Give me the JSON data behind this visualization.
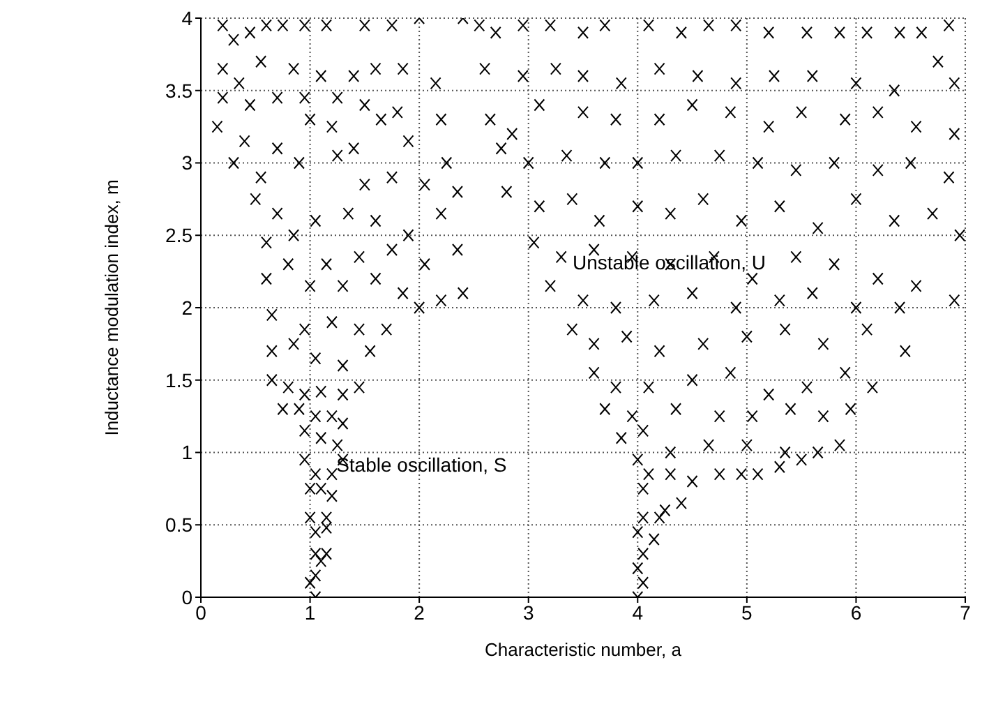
{
  "chart_data": {
    "type": "scatter",
    "xlabel": "Characteristic number, a",
    "ylabel": "Inductance modulation index, m",
    "annotations": [
      "Stable oscillation, S",
      "Unstable oscillation, U"
    ],
    "xlim": [
      0,
      7
    ],
    "xticks": [
      0,
      1,
      2,
      3,
      4,
      5,
      6,
      7
    ],
    "ylim": [
      0,
      4
    ],
    "yticks": [
      0,
      0.5,
      1,
      1.5,
      2,
      2.5,
      3,
      3.5,
      4
    ],
    "grid": true,
    "marker": "cross",
    "series": [
      {
        "color": "#000000",
        "x": [
          0.2,
          0.3,
          0.45,
          0.6,
          0.75,
          0.95,
          1.15,
          1.5,
          1.75,
          2.0,
          2.4,
          0.2,
          0.35,
          0.55,
          0.85,
          1.1,
          1.4,
          1.6,
          1.85,
          2.15,
          0.2,
          0.45,
          0.7,
          0.95,
          1.25,
          1.5,
          1.8,
          2.2,
          0.15,
          0.4,
          0.7,
          1.0,
          1.2,
          1.4,
          1.65,
          1.9,
          2.25,
          0.3,
          0.55,
          0.9,
          1.25,
          1.5,
          1.75,
          2.05,
          2.35,
          0.5,
          0.7,
          1.05,
          1.35,
          1.6,
          1.9,
          2.2,
          0.6,
          0.85,
          1.15,
          1.45,
          1.75,
          2.05,
          2.35,
          0.6,
          0.8,
          1.0,
          1.3,
          1.6,
          1.85,
          2.2,
          2.4,
          0.65,
          0.95,
          1.2,
          1.45,
          1.7,
          2.0,
          0.65,
          0.85,
          1.05,
          1.3,
          1.55,
          0.65,
          0.8,
          0.95,
          1.1,
          1.3,
          1.45,
          0.75,
          0.9,
          1.05,
          1.2,
          1.3,
          0.95,
          1.1,
          1.25,
          0.95,
          1.05,
          1.2,
          1.3,
          1.0,
          1.1,
          1.2,
          1.0,
          1.15,
          1.05,
          1.15,
          1.05,
          1.15,
          1.1,
          1.0,
          1.05,
          1.05,
          2.55,
          2.7,
          2.95,
          3.2,
          3.5,
          3.7,
          4.1,
          4.4,
          4.65,
          4.9,
          5.2,
          5.55,
          5.85,
          6.1,
          6.4,
          6.6,
          6.85,
          2.6,
          2.95,
          3.25,
          3.5,
          3.85,
          4.2,
          4.55,
          4.9,
          5.25,
          5.6,
          6.0,
          6.35,
          6.75,
          6.9,
          2.65,
          2.85,
          3.1,
          3.5,
          3.8,
          4.2,
          4.5,
          4.85,
          5.2,
          5.5,
          5.9,
          6.2,
          6.55,
          6.9,
          2.75,
          3.0,
          3.35,
          3.7,
          4.0,
          4.35,
          4.75,
          5.1,
          5.45,
          5.8,
          6.2,
          6.5,
          6.85,
          2.8,
          3.1,
          3.4,
          3.65,
          4.0,
          4.3,
          4.6,
          4.95,
          5.3,
          5.65,
          6.0,
          6.35,
          6.7,
          6.95,
          3.05,
          3.3,
          3.6,
          3.95,
          4.3,
          4.7,
          5.05,
          5.45,
          5.8,
          6.2,
          6.55,
          6.9,
          3.2,
          3.5,
          3.8,
          4.15,
          4.5,
          4.9,
          5.3,
          5.6,
          6.0,
          6.4,
          3.4,
          3.6,
          3.9,
          4.2,
          4.6,
          5.0,
          5.35,
          5.7,
          6.1,
          6.45,
          3.6,
          3.8,
          4.1,
          4.5,
          4.85,
          5.2,
          5.55,
          5.9,
          6.15,
          3.7,
          3.95,
          4.35,
          4.75,
          5.05,
          5.4,
          5.7,
          5.95,
          3.85,
          4.05,
          4.3,
          4.65,
          5.0,
          5.35,
          5.65,
          5.85,
          4.0,
          4.1,
          4.3,
          4.5,
          4.75,
          4.95,
          5.1,
          5.3,
          5.5,
          4.05,
          4.25,
          4.4,
          4.05,
          4.2,
          4.0,
          4.15,
          4.05,
          4.0,
          4.05,
          4.0
        ],
        "values": [
          3.95,
          3.85,
          3.9,
          3.95,
          3.95,
          3.95,
          3.95,
          3.95,
          3.95,
          4.0,
          4.0,
          3.65,
          3.55,
          3.7,
          3.65,
          3.6,
          3.6,
          3.65,
          3.65,
          3.55,
          3.45,
          3.4,
          3.45,
          3.45,
          3.45,
          3.4,
          3.35,
          3.3,
          3.25,
          3.15,
          3.1,
          3.3,
          3.25,
          3.1,
          3.3,
          3.15,
          3.0,
          3.0,
          2.9,
          3.0,
          3.05,
          2.85,
          2.9,
          2.85,
          2.8,
          2.75,
          2.65,
          2.6,
          2.65,
          2.6,
          2.5,
          2.65,
          2.45,
          2.5,
          2.3,
          2.35,
          2.4,
          2.3,
          2.4,
          2.2,
          2.3,
          2.15,
          2.15,
          2.2,
          2.1,
          2.05,
          2.1,
          1.95,
          1.85,
          1.9,
          1.85,
          1.85,
          2.0,
          1.7,
          1.75,
          1.65,
          1.6,
          1.7,
          1.5,
          1.45,
          1.4,
          1.42,
          1.4,
          1.45,
          1.3,
          1.3,
          1.25,
          1.25,
          1.2,
          1.15,
          1.1,
          1.05,
          0.95,
          0.85,
          0.85,
          0.95,
          0.75,
          0.75,
          0.7,
          0.55,
          0.55,
          0.45,
          0.48,
          0.3,
          0.3,
          0.25,
          0.1,
          0.15,
          0.0,
          3.95,
          3.9,
          3.95,
          3.95,
          3.9,
          3.95,
          3.95,
          3.9,
          3.95,
          3.95,
          3.9,
          3.9,
          3.9,
          3.9,
          3.9,
          3.9,
          3.95,
          3.65,
          3.6,
          3.65,
          3.6,
          3.55,
          3.65,
          3.6,
          3.55,
          3.6,
          3.6,
          3.55,
          3.5,
          3.7,
          3.55,
          3.3,
          3.2,
          3.4,
          3.35,
          3.3,
          3.3,
          3.4,
          3.35,
          3.25,
          3.35,
          3.3,
          3.35,
          3.25,
          3.2,
          3.1,
          3.0,
          3.05,
          3.0,
          3.0,
          3.05,
          3.05,
          3.0,
          2.95,
          3.0,
          2.95,
          3.0,
          2.9,
          2.8,
          2.7,
          2.75,
          2.6,
          2.7,
          2.65,
          2.75,
          2.6,
          2.7,
          2.55,
          2.75,
          2.6,
          2.65,
          2.5,
          2.45,
          2.35,
          2.4,
          2.35,
          2.3,
          2.35,
          2.2,
          2.35,
          2.3,
          2.2,
          2.15,
          2.05,
          2.15,
          2.05,
          2.0,
          2.05,
          2.1,
          2.0,
          2.05,
          2.1,
          2.0,
          2.0,
          1.85,
          1.75,
          1.8,
          1.7,
          1.75,
          1.8,
          1.85,
          1.75,
          1.85,
          1.7,
          1.55,
          1.45,
          1.45,
          1.5,
          1.55,
          1.4,
          1.45,
          1.55,
          1.45,
          1.3,
          1.25,
          1.3,
          1.25,
          1.25,
          1.3,
          1.25,
          1.3,
          1.1,
          1.15,
          1.0,
          1.05,
          1.05,
          1.0,
          1.0,
          1.05,
          0.95,
          0.85,
          0.85,
          0.8,
          0.85,
          0.85,
          0.85,
          0.9,
          0.95,
          0.75,
          0.6,
          0.65,
          0.55,
          0.55,
          0.45,
          0.4,
          0.3,
          0.2,
          0.1,
          0.0
        ]
      }
    ]
  }
}
